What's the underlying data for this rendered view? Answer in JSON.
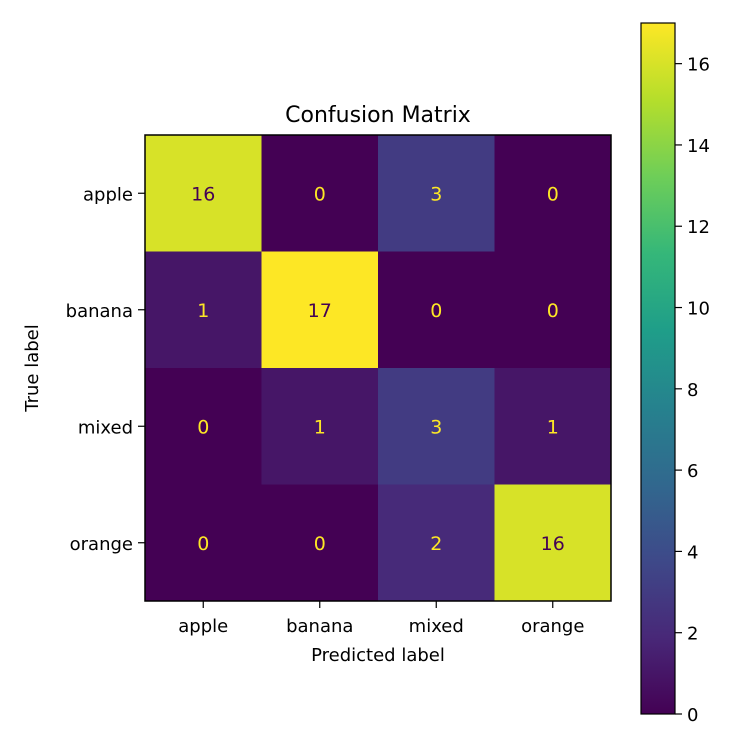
{
  "chart_data": {
    "type": "heatmap",
    "title": "Confusion Matrix",
    "xlabel": "Predicted label",
    "ylabel": "True label",
    "x_categories": [
      "apple",
      "banana",
      "mixed",
      "orange"
    ],
    "y_categories": [
      "apple",
      "banana",
      "mixed",
      "orange"
    ],
    "values": [
      [
        16,
        0,
        3,
        0
      ],
      [
        1,
        17,
        0,
        0
      ],
      [
        0,
        1,
        3,
        1
      ],
      [
        0,
        0,
        2,
        16
      ]
    ],
    "colormap": "viridis",
    "vmin": 0,
    "vmax": 17,
    "colorbar_ticks": [
      0,
      2,
      4,
      6,
      8,
      10,
      12,
      14,
      16
    ],
    "text_color_on_dark": "#fde725",
    "text_color_on_light": "#440154"
  }
}
